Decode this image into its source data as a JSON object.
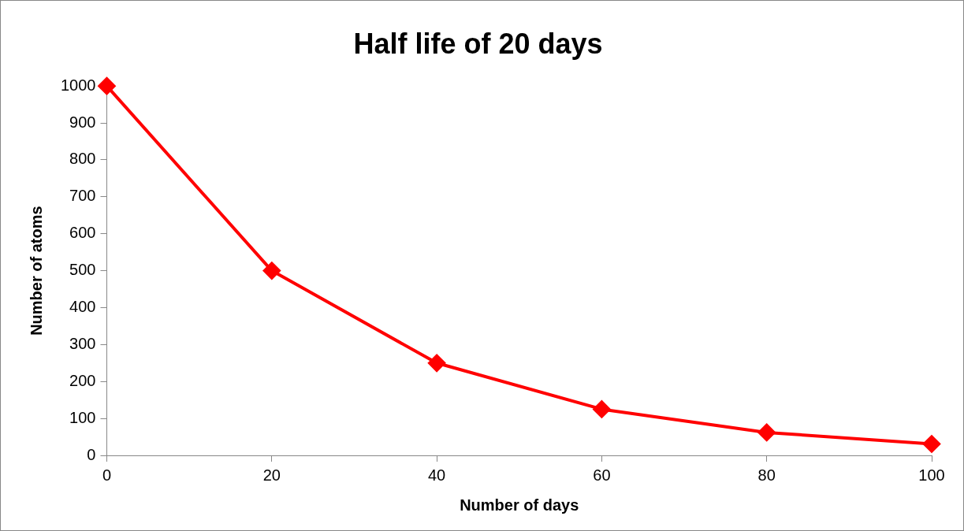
{
  "chart_data": {
    "type": "line",
    "title": "Half life of 20 days",
    "xlabel": "Number of days",
    "ylabel": "Number of atoms",
    "x": [
      0,
      20,
      40,
      60,
      80,
      100
    ],
    "series": [
      {
        "color": "#ff0000",
        "values": [
          1000,
          500,
          250,
          125,
          62,
          31
        ]
      }
    ],
    "xlim": [
      0,
      100
    ],
    "xticks": [
      0,
      20,
      40,
      60,
      80,
      100
    ],
    "ylim": [
      0,
      1000
    ],
    "yticks": [
      0,
      100,
      200,
      300,
      400,
      500,
      600,
      700,
      800,
      900,
      1000
    ],
    "grid": false,
    "legend": false,
    "marker": "diamond",
    "line_style": "solid"
  }
}
